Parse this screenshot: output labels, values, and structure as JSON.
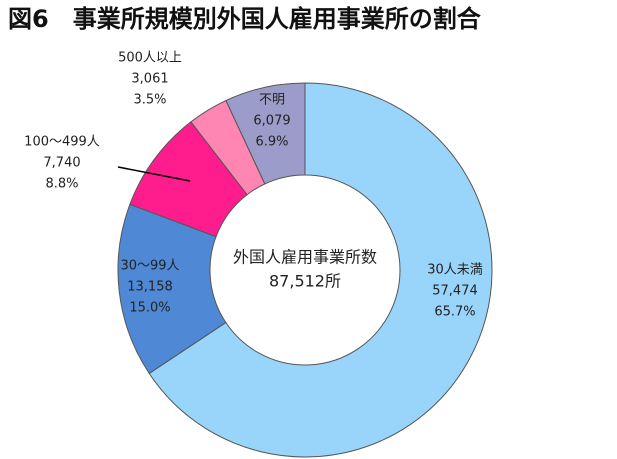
{
  "chart_data": {
    "type": "donut",
    "title": "図6　事業所規模別外国人雇用事業所の割合",
    "center_label": "外国人雇用事業所数",
    "total": 87512,
    "total_label": "87,512所",
    "categories": [
      "30人未満",
      "30～99人",
      "100～499人",
      "500人以上",
      "不明"
    ],
    "values": [
      57474,
      13158,
      7740,
      3061,
      6079
    ],
    "value_labels": [
      "57,474",
      "13,158",
      "7,740",
      "3,061",
      "6,079"
    ],
    "shares": [
      65.7,
      15.0,
      8.8,
      3.5,
      6.9
    ],
    "share_labels": [
      "65.7%",
      "15.0%",
      "8.8%",
      "3.5%",
      "6.9%"
    ],
    "colors": [
      "#99d5fb",
      "#4f88d4",
      "#ff1c8d",
      "#ff85b3",
      "#9c9cca"
    ]
  }
}
